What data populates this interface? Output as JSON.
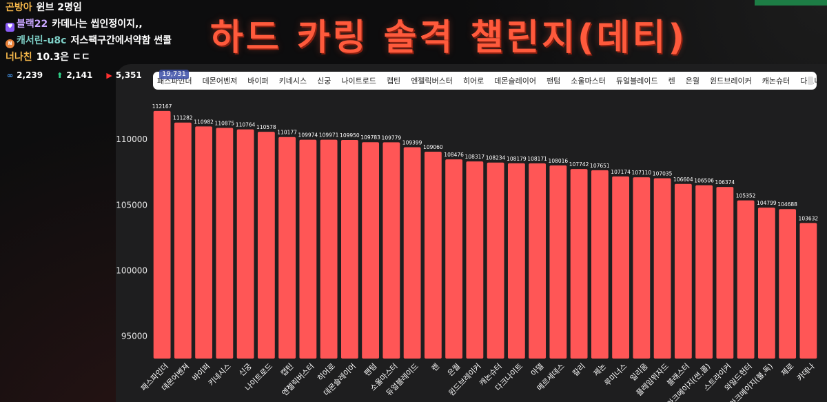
{
  "chat": [
    {
      "user": "곤방아",
      "msg": "윈브 2명임",
      "badge": "",
      "style": ""
    },
    {
      "user": "블랙22",
      "msg": "카데나는 씹인정이지,,",
      "badge": "heart",
      "style": "purple"
    },
    {
      "user": "캐서린-u8c",
      "msg": "저스팩구간에서약함 썬콜",
      "badge": "pip",
      "style": "teal"
    },
    {
      "user": "너나친",
      "msg": "10.3은 ㄷㄷ",
      "badge": "",
      "style": ""
    }
  ],
  "stats": [
    {
      "icon": "infinity-icon",
      "glyph": "∞",
      "value": "2,239",
      "color": "#4aa3ff"
    },
    {
      "icon": "up-arrow-icon",
      "glyph": "⬆",
      "value": "2,141",
      "color": "#2fd48a"
    },
    {
      "icon": "youtube-icon",
      "glyph": "▶",
      "value": "5,351",
      "color": "#ff3030"
    }
  ],
  "overlay_badge": "19,731",
  "title": "하드 카링 솔격 챌린지(데티)",
  "tabs": [
    "패스파인더",
    "데몬어벤져",
    "바이퍼",
    "키네시스",
    "신궁",
    "나이트로드",
    "캡틴",
    "엔젤릭버스터",
    "히어로",
    "데몬슬레이어",
    "팬텀",
    "소울마스터",
    "듀얼블레이드",
    "렌",
    "은월",
    "윈드브레이커",
    "캐논슈터",
    "다크나이트"
  ],
  "colors": {
    "bar": "#ff5656",
    "accent": "#ff5a3c"
  },
  "chart_data": {
    "type": "bar",
    "categories": [
      "패스파인더",
      "데몬어벤져",
      "바이퍼",
      "키네시스",
      "신궁",
      "나이트로드",
      "캡틴",
      "엔젤릭버스터",
      "히어로",
      "데몬슬레이어",
      "팬텀",
      "소울마스터",
      "듀얼블레이드",
      "렌",
      "은월",
      "윈드브레이커",
      "캐논슈터",
      "다크나이트",
      "아델",
      "메르세데스",
      "칼리",
      "제논",
      "루미너스",
      "일리움",
      "플레임위자드",
      "블래스터",
      "아크메이지(썬,콜)",
      "스트라이커",
      "와일드헌터",
      "아크메이지(불,독)",
      "제로",
      "카데나"
    ],
    "values": [
      112167,
      111282,
      110982,
      110875,
      110764,
      110578,
      110177,
      109974,
      109971,
      109950,
      109783,
      109779,
      109399,
      109060,
      108476,
      108317,
      108234,
      108179,
      108171,
      108016,
      107742,
      107651,
      107174,
      107110,
      107035,
      106604,
      106506,
      106374,
      105352,
      104799,
      104688,
      103632
    ],
    "yticks": [
      95000,
      100000,
      105000,
      110000
    ],
    "ylim": [
      93300,
      113000
    ],
    "grid": false,
    "title": "",
    "xlabel": "",
    "ylabel": ""
  }
}
